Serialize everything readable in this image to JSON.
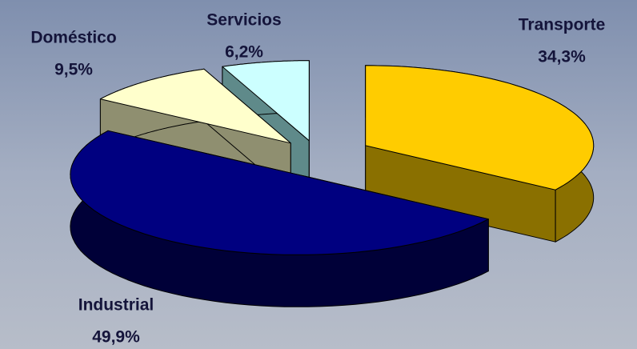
{
  "chart_data": {
    "type": "pie3d",
    "categories": [
      "Transporte",
      "Industrial",
      "Doméstico",
      "Servicios"
    ],
    "values": [
      34.3,
      49.9,
      9.5,
      6.2
    ],
    "value_labels": [
      "34,3%",
      "49,9%",
      "9,5%",
      "6,2%"
    ],
    "colors": [
      "#ffcc00",
      "#000080",
      "#ffffcc",
      "#ccffff"
    ],
    "side_colors": [
      "#8a7000",
      "#000038",
      "#8f8f70",
      "#5f8a8a"
    ]
  }
}
